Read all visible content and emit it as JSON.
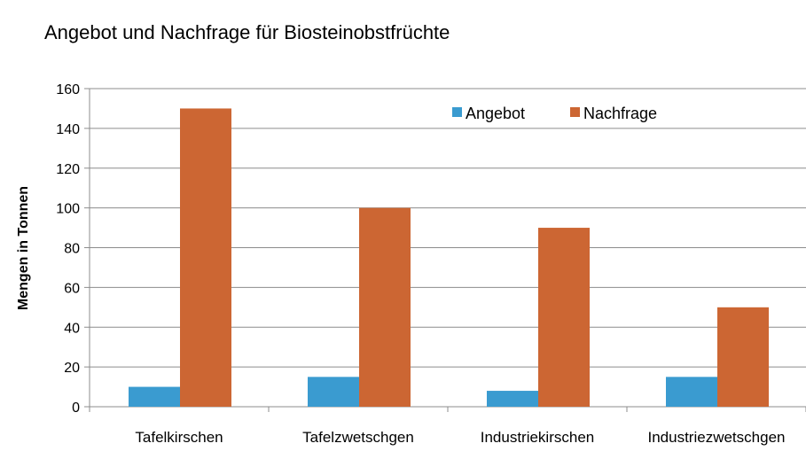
{
  "chart_data": {
    "type": "bar",
    "title": "Angebot und Nachfrage für Biosteinobstfrüchte",
    "xlabel": "",
    "ylabel": "Mengen in Tonnen",
    "categories": [
      "Tafelkirschen",
      "Tafelzwetschgen",
      "Industriekirschen",
      "Industriezwetschgen"
    ],
    "series": [
      {
        "name": "Angebot",
        "color": "#3A9BD0",
        "values": [
          10,
          15,
          8,
          15
        ]
      },
      {
        "name": "Nachfrage",
        "color": "#CC6633",
        "values": [
          150,
          100,
          90,
          50
        ]
      }
    ],
    "ylim": [
      0,
      160
    ],
    "yticks": [
      0,
      20,
      40,
      60,
      80,
      100,
      120,
      140,
      160
    ],
    "grid": true,
    "legend_position": "top-right"
  }
}
